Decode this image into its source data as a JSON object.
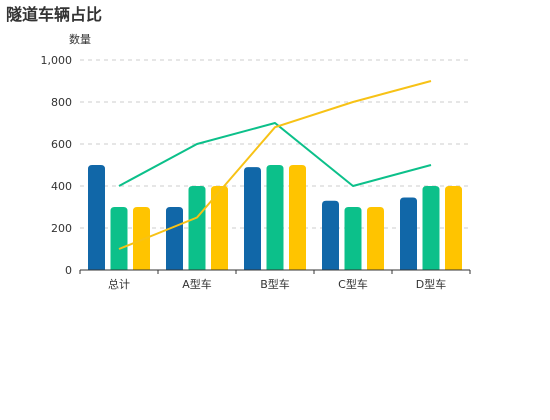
{
  "chart_data": {
    "type": "bar",
    "title": "隧道车辆占比",
    "ylabel": "数量",
    "ylim": [
      0,
      1000
    ],
    "yticks": [
      0,
      200,
      400,
      600,
      800,
      1000
    ],
    "ytick_labels": [
      "0",
      "200",
      "400",
      "600",
      "800",
      "1,000"
    ],
    "categories": [
      "总计",
      "A型车",
      "B型车",
      "C型车",
      "D型车"
    ],
    "bar_series": [
      {
        "color": "#1167a8",
        "values": [
          500,
          300,
          490,
          330,
          345
        ]
      },
      {
        "color": "#0cc08a",
        "values": [
          300,
          400,
          500,
          300,
          400
        ]
      },
      {
        "color": "#ffc400",
        "values": [
          300,
          400,
          500,
          300,
          400
        ]
      }
    ],
    "line_series": [
      {
        "color": "#0cc08a",
        "values": [
          400,
          600,
          700,
          400,
          500
        ]
      },
      {
        "color": "#f7c216",
        "values": [
          100,
          250,
          680,
          800,
          900
        ]
      }
    ],
    "grid": true,
    "legend": "none"
  }
}
